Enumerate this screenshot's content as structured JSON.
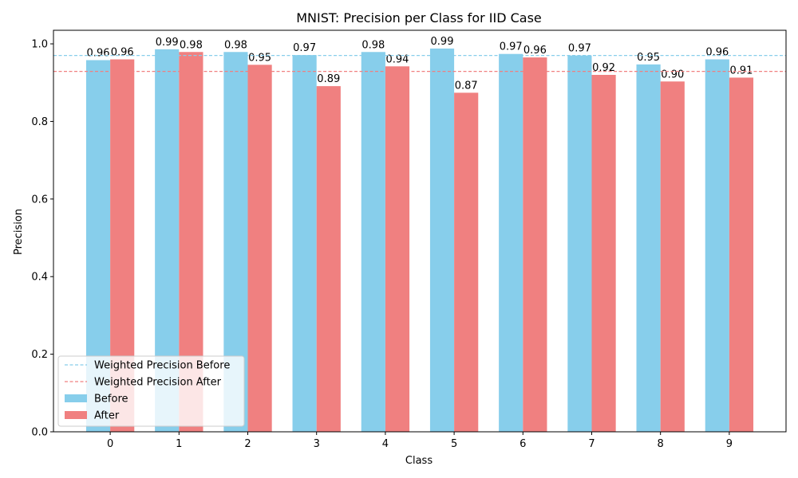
{
  "chart_data": {
    "type": "bar",
    "title": "MNIST: Precision per Class for IID Case",
    "xlabel": "Class",
    "ylabel": "Precision",
    "ylim": [
      0,
      1.035
    ],
    "yticks": [
      "0.0",
      "0.2",
      "0.4",
      "0.6",
      "0.8",
      "1.0"
    ],
    "categories": [
      "0",
      "1",
      "2",
      "3",
      "4",
      "5",
      "6",
      "7",
      "8",
      "9"
    ],
    "series": [
      {
        "name": "Before",
        "color": "#87ceeb",
        "values": [
          0.958,
          0.986,
          0.979,
          0.971,
          0.979,
          0.988,
          0.974,
          0.97,
          0.947,
          0.96
        ],
        "labels": [
          "0.96",
          "0.99",
          "0.98",
          "0.97",
          "0.98",
          "0.99",
          "0.97",
          "0.97",
          "0.95",
          "0.96"
        ]
      },
      {
        "name": "After",
        "color": "#f08080",
        "values": [
          0.96,
          0.979,
          0.946,
          0.891,
          0.942,
          0.874,
          0.965,
          0.92,
          0.903,
          0.913
        ],
        "labels": [
          "0.96",
          "0.98",
          "0.95",
          "0.89",
          "0.94",
          "0.87",
          "0.96",
          "0.92",
          "0.90",
          "0.91"
        ]
      }
    ],
    "reference_lines": [
      {
        "name": "Weighted Precision Before",
        "value": 0.97,
        "color": "#87ceeb",
        "style": "dashed"
      },
      {
        "name": "Weighted Precision After",
        "value": 0.929,
        "color": "#f08080",
        "style": "dashed"
      }
    ],
    "legend_position": "lower-left",
    "grid": false
  }
}
